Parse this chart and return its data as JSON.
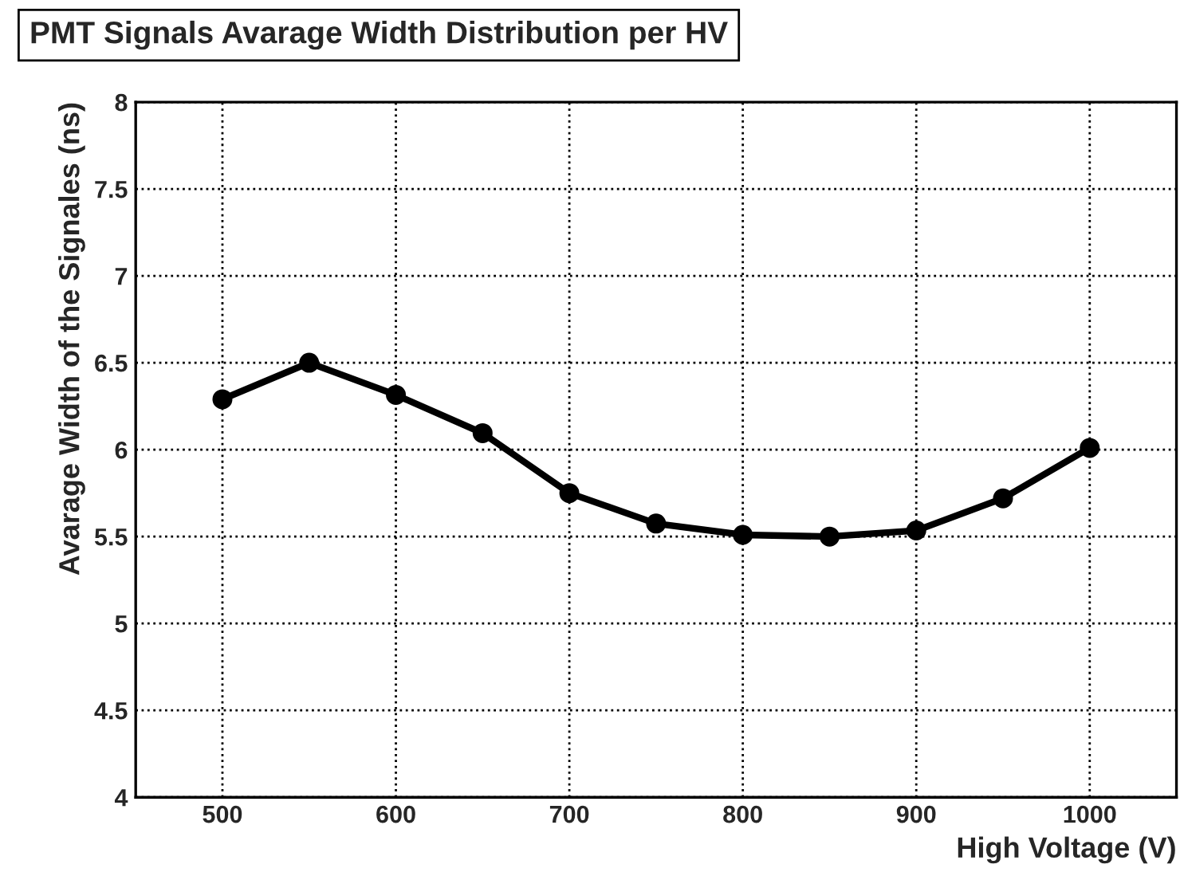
{
  "chart_data": {
    "type": "line",
    "title": "PMT Signals Avarage Width Distribution per HV",
    "xlabel": "High Voltage (V)",
    "ylabel": "Avarage Width of the Signales (ns)",
    "x": [
      500,
      550,
      600,
      650,
      700,
      750,
      800,
      850,
      900,
      950,
      1000
    ],
    "series": [
      {
        "color": "#000000",
        "values": [
          6.29,
          6.5,
          6.315,
          6.095,
          5.75,
          5.575,
          5.51,
          5.5,
          5.535,
          5.72,
          6.01
        ]
      }
    ],
    "xlim": [
      450,
      1050
    ],
    "xticks": [
      500,
      600,
      700,
      800,
      900,
      1000
    ],
    "ylim": [
      4,
      8
    ],
    "yticks": [
      4,
      4.5,
      5,
      5.5,
      6,
      6.5,
      7,
      7.5,
      8
    ],
    "grid": true,
    "marker": "circle",
    "line_style": "solid",
    "legend": false
  }
}
